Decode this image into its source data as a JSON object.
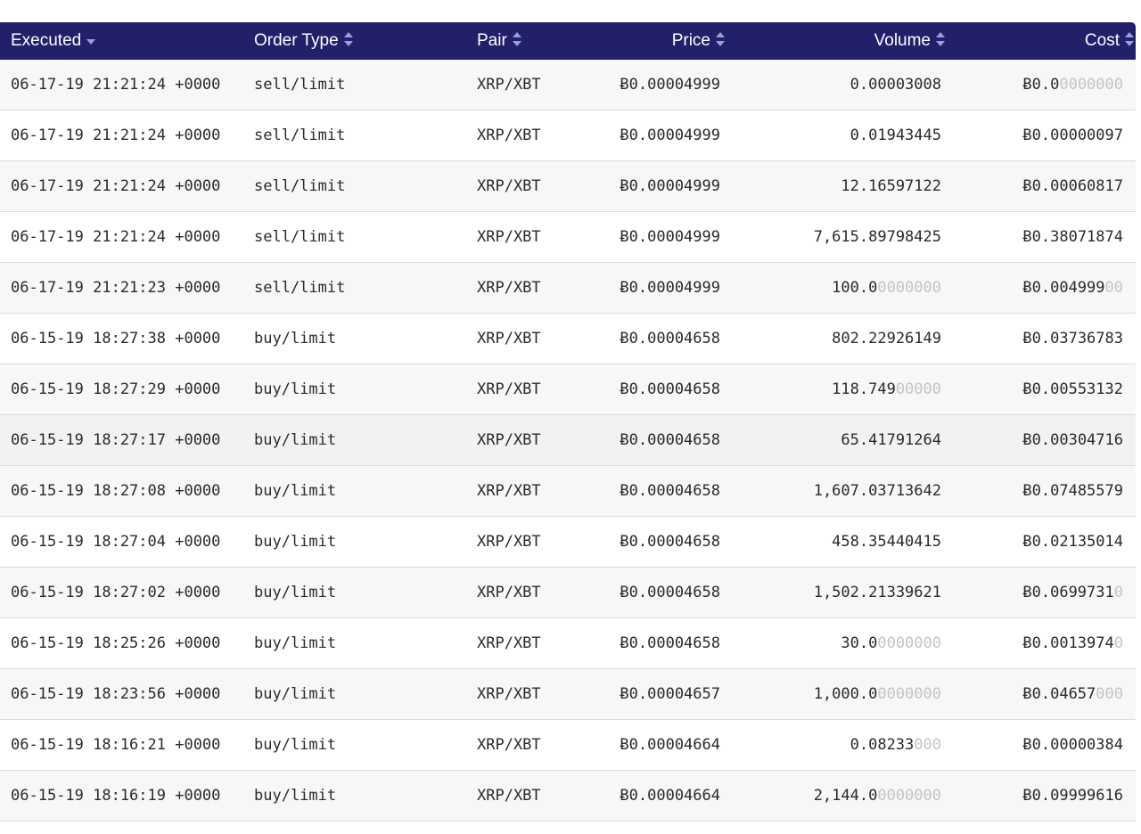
{
  "table": {
    "headers": {
      "executed": "Executed",
      "order_type": "Order Type",
      "pair": "Pair",
      "price": "Price",
      "volume": "Volume",
      "cost": "Cost"
    },
    "sort": {
      "column": "executed",
      "direction": "descending"
    },
    "colors": {
      "header_bg": "#22206a",
      "header_text": "#ffffff",
      "sort_icon": "#9aa0d8",
      "trailing_zeros": "#c4c4c4"
    },
    "rows": [
      {
        "executed": "06-17-19 21:21:24 +0000",
        "order_type": "sell/limit",
        "pair": "XRP/XBT",
        "price": "Ƀ0.00004999",
        "volume": "0.00003008",
        "volume_trail": "",
        "cost": "Ƀ0.0",
        "cost_trail": "0000000"
      },
      {
        "executed": "06-17-19 21:21:24 +0000",
        "order_type": "sell/limit",
        "pair": "XRP/XBT",
        "price": "Ƀ0.00004999",
        "volume": "0.01943445",
        "volume_trail": "",
        "cost": "Ƀ0.00000097",
        "cost_trail": ""
      },
      {
        "executed": "06-17-19 21:21:24 +0000",
        "order_type": "sell/limit",
        "pair": "XRP/XBT",
        "price": "Ƀ0.00004999",
        "volume": "12.16597122",
        "volume_trail": "",
        "cost": "Ƀ0.00060817",
        "cost_trail": ""
      },
      {
        "executed": "06-17-19 21:21:24 +0000",
        "order_type": "sell/limit",
        "pair": "XRP/XBT",
        "price": "Ƀ0.00004999",
        "volume": "7,615.89798425",
        "volume_trail": "",
        "cost": "Ƀ0.38071874",
        "cost_trail": ""
      },
      {
        "executed": "06-17-19 21:21:23 +0000",
        "order_type": "sell/limit",
        "pair": "XRP/XBT",
        "price": "Ƀ0.00004999",
        "volume": "100.0",
        "volume_trail": "0000000",
        "cost": "Ƀ0.004999",
        "cost_trail": "00"
      },
      {
        "executed": "06-15-19 18:27:38 +0000",
        "order_type": "buy/limit",
        "pair": "XRP/XBT",
        "price": "Ƀ0.00004658",
        "volume": "802.22926149",
        "volume_trail": "",
        "cost": "Ƀ0.03736783",
        "cost_trail": ""
      },
      {
        "executed": "06-15-19 18:27:29 +0000",
        "order_type": "buy/limit",
        "pair": "XRP/XBT",
        "price": "Ƀ0.00004658",
        "volume": "118.749",
        "volume_trail": "00000",
        "cost": "Ƀ0.00553132",
        "cost_trail": ""
      },
      {
        "executed": "06-15-19 18:27:17 +0000",
        "order_type": "buy/limit",
        "pair": "XRP/XBT",
        "price": "Ƀ0.00004658",
        "volume": "65.41791264",
        "volume_trail": "",
        "cost": "Ƀ0.00304716",
        "cost_trail": ""
      },
      {
        "executed": "06-15-19 18:27:08 +0000",
        "order_type": "buy/limit",
        "pair": "XRP/XBT",
        "price": "Ƀ0.00004658",
        "volume": "1,607.03713642",
        "volume_trail": "",
        "cost": "Ƀ0.07485579",
        "cost_trail": ""
      },
      {
        "executed": "06-15-19 18:27:04 +0000",
        "order_type": "buy/limit",
        "pair": "XRP/XBT",
        "price": "Ƀ0.00004658",
        "volume": "458.35440415",
        "volume_trail": "",
        "cost": "Ƀ0.02135014",
        "cost_trail": ""
      },
      {
        "executed": "06-15-19 18:27:02 +0000",
        "order_type": "buy/limit",
        "pair": "XRP/XBT",
        "price": "Ƀ0.00004658",
        "volume": "1,502.21339621",
        "volume_trail": "",
        "cost": "Ƀ0.0699731",
        "cost_trail": "0"
      },
      {
        "executed": "06-15-19 18:25:26 +0000",
        "order_type": "buy/limit",
        "pair": "XRP/XBT",
        "price": "Ƀ0.00004658",
        "volume": "30.0",
        "volume_trail": "0000000",
        "cost": "Ƀ0.0013974",
        "cost_trail": "0"
      },
      {
        "executed": "06-15-19 18:23:56 +0000",
        "order_type": "buy/limit",
        "pair": "XRP/XBT",
        "price": "Ƀ0.00004657",
        "volume": "1,000.0",
        "volume_trail": "0000000",
        "cost": "Ƀ0.04657",
        "cost_trail": "000"
      },
      {
        "executed": "06-15-19 18:16:21 +0000",
        "order_type": "buy/limit",
        "pair": "XRP/XBT",
        "price": "Ƀ0.00004664",
        "volume": "0.08233",
        "volume_trail": "000",
        "cost": "Ƀ0.00000384",
        "cost_trail": ""
      },
      {
        "executed": "06-15-19 18:16:19 +0000",
        "order_type": "buy/limit",
        "pair": "XRP/XBT",
        "price": "Ƀ0.00004664",
        "volume": "2,144.0",
        "volume_trail": "0000000",
        "cost": "Ƀ0.09999616",
        "cost_trail": ""
      }
    ]
  }
}
